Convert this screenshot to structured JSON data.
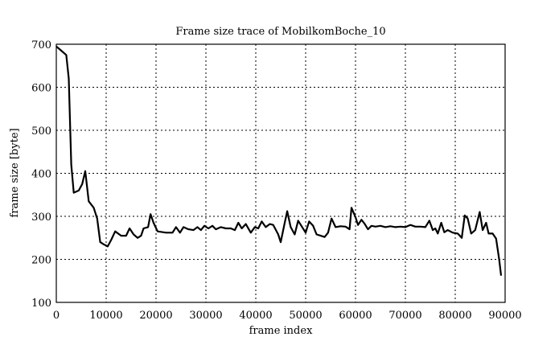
{
  "chart_data": {
    "type": "line",
    "title": "Frame size trace of MobilkomBoche_10",
    "xlabel": "frame index",
    "ylabel": "frame size [byte]",
    "xlim": [
      0,
      90000
    ],
    "ylim": [
      100,
      700
    ],
    "xticks": [
      0,
      10000,
      20000,
      30000,
      40000,
      50000,
      60000,
      70000,
      80000,
      90000
    ],
    "yticks": [
      100,
      200,
      300,
      400,
      500,
      600,
      700
    ],
    "grid": true,
    "grid_style": "dotted",
    "line_color": "#000000",
    "series": [
      {
        "x": [
          0,
          1000,
          2000,
          2500,
          3000,
          3500,
          4500,
          5200,
          5800,
          6500,
          7500,
          8200,
          8800,
          9500,
          10300,
          11000,
          11800,
          13000,
          14000,
          14700,
          15500,
          16300,
          17000,
          17500,
          18400,
          18900,
          19500,
          20300,
          22000,
          23300,
          24000,
          24800,
          25500,
          26500,
          27500,
          28300,
          29000,
          29700,
          30500,
          31300,
          32000,
          33000,
          34000,
          35000,
          35800,
          36500,
          37200,
          38000,
          39000,
          39800,
          40500,
          41200,
          42000,
          42800,
          43500,
          44500,
          45000,
          45800,
          46300,
          47000,
          47800,
          48500,
          49300,
          50000,
          50700,
          51500,
          52200,
          53000,
          53800,
          54500,
          55200,
          56000,
          57000,
          58000,
          58800,
          59200,
          60000,
          60500,
          61200,
          61800,
          62500,
          63200,
          64000,
          65000,
          66000,
          67000,
          68000,
          69000,
          70000,
          71000,
          72000,
          73000,
          74000,
          74800,
          75500,
          76000,
          76500,
          77200,
          77800,
          78500,
          79500,
          80500,
          81300,
          81900,
          82500,
          83200,
          84000,
          84900,
          85500,
          86200,
          86700,
          87500,
          88200,
          88800,
          89200
        ],
        "y": [
          695,
          685,
          675,
          620,
          420,
          355,
          360,
          375,
          405,
          335,
          320,
          295,
          240,
          235,
          230,
          245,
          265,
          255,
          255,
          272,
          258,
          250,
          255,
          272,
          275,
          305,
          285,
          265,
          262,
          262,
          275,
          262,
          275,
          270,
          268,
          275,
          268,
          278,
          272,
          278,
          270,
          275,
          272,
          272,
          268,
          285,
          272,
          282,
          262,
          275,
          272,
          288,
          275,
          282,
          280,
          258,
          240,
          285,
          312,
          275,
          258,
          290,
          275,
          262,
          288,
          278,
          258,
          255,
          252,
          262,
          295,
          275,
          277,
          276,
          270,
          320,
          298,
          280,
          292,
          283,
          270,
          278,
          276,
          278,
          275,
          277,
          275,
          276,
          275,
          280,
          276,
          276,
          275,
          290,
          268,
          272,
          260,
          285,
          263,
          268,
          262,
          260,
          250,
          302,
          295,
          260,
          268,
          310,
          268,
          285,
          260,
          260,
          248,
          200,
          162
        ]
      }
    ]
  }
}
